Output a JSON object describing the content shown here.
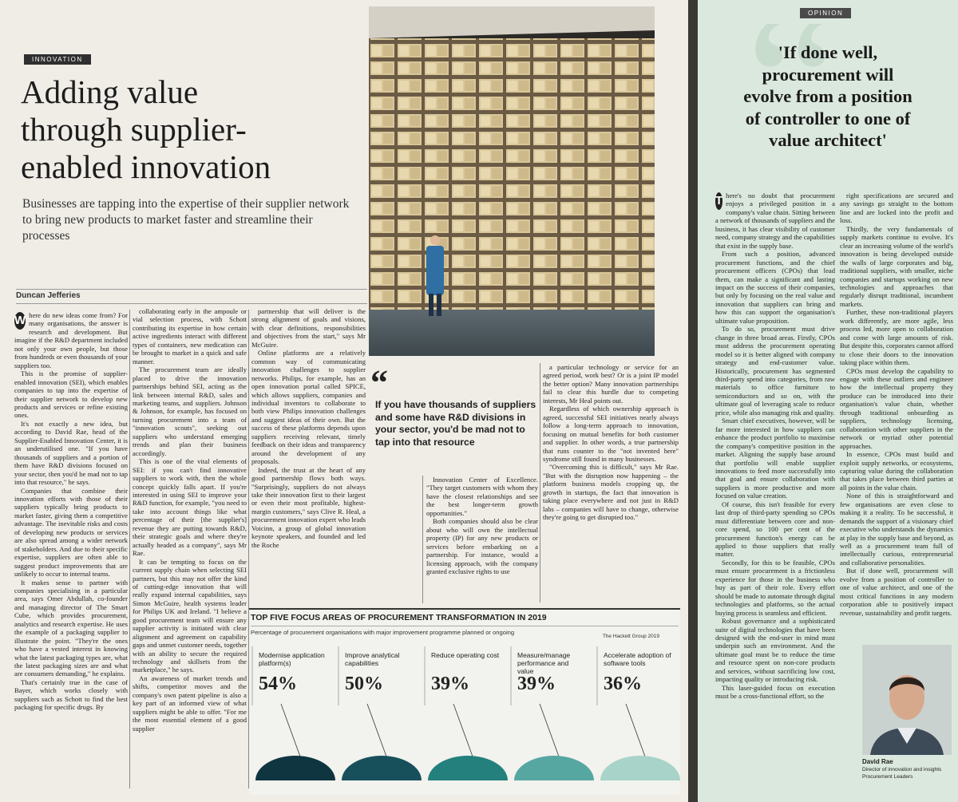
{
  "left": {
    "section": "INNOVATION",
    "headline": [
      "Adding value",
      "through supplier-",
      "enabled innovation"
    ],
    "standfirst": "Businesses are tapping into the expertise of their supplier network to bring new products to market faster and streamline their processes",
    "byline": "Duncan Jefferies",
    "columns": [
      [
        "Where do new ideas come from? For many organisations, the answer is research and development. But imagine if the R&D department included not only your own people, but those from hundreds or even thousands of your suppliers too.",
        "This is the promise of supplier-enabled innovation (SEI), which enables companies to tap into the expertise of their supplier network to develop new products and services or refine existing ones.",
        "It's not exactly a new idea, but according to David Rae, head of the Supplier-Enabled Innovation Center, it is an underutilised one. \"If you have thousands of suppliers and a portion of them have R&D divisions focused on your sector, then you'd be mad not to tap into that resource,\" he says.",
        "Companies that combine their innovation efforts with those of their suppliers typically bring products to market faster, giving them a competitive advantage. The inevitable risks and costs of developing new products or services are also spread among a wider network of stakeholders. And due to their specific expertise, suppliers are often able to suggest product improvements that are unlikely to occur to internal teams.",
        "It makes sense to partner with companies specialising in a particular area, says Omer Abdullah, co-founder and managing director of The Smart Cube, which provides procurement, analytics and research expertise. He uses the example of a packaging supplier to illustrate the point. \"They're the ones who have a vested interest in knowing what the latest packaging types are, what the latest packaging sizes are and what are consumers demanding,\" he explains.",
        "That's certainly true in the case of Bayer, which works closely with suppliers such as Schott to find the best packaging for specific drugs. By"
      ],
      [
        "collaborating early in the ampoule or vial selection process, with Schott contributing its expertise in how certain active ingredients interact with different types of containers, new medication can be brought to market in a quick and safe manner.",
        "The procurement team are ideally placed to drive the innovation partnerships behind SEI, acting as the link between internal R&D, sales and marketing teams, and suppliers. Johnson & Johnson, for example, has focused on turning procurement into a team of \"innovation scouts\", seeking out suppliers who understand emerging trends and plan their business accordingly.",
        "This is one of the vital elements of SEI: if you can't find innovative suppliers to work with, then the whole concept quickly falls apart. If you're interested in using SEI to improve your R&D function, for example, \"you need to take into account things like what percentage of their [the supplier's] revenue they are putting towards R&D, their strategic goals and where they're actually headed as a company\", says Mr Rae.",
        "It can be tempting to focus on the current supply chain when selecting SEI partners, but this may not offer the kind of cutting-edge innovation that will really expand internal capabilities, says Simon McGuire, health systems leader for Philips UK and Ireland. \"I believe a good procurement team will ensure any supplier activity is initiated with clear alignment and agreement on capability gaps and unmet customer needs, together with an ability to secure the required technology and skillsets from the marketplace,\" he says.",
        "An awareness of market trends and shifts, competitor moves and the company's own patent pipeline is also a key part of an informed view of what suppliers might be able to offer. \"For me the most essential element of a good supplier"
      ],
      [
        "partnership that will deliver is the strong alignment of goals and visions, with clear definitions, responsibilities and objectives from the start,\" says Mr McGuire.",
        "Online platforms are a relatively common way of communicating innovation challenges to supplier networks. Philips, for example, has an open innovation portal called SPICE, which allows suppliers, companies and individual inventors to collaborate to both view Philips innovation challenges and suggest ideas of their own. But the success of these platforms depends upon suppliers receiving relevant, timely feedback on their ideas and transparency around the development of any proposals.",
        "Indeed, the trust at the heart of any good partnership flows both ways. \"Surprisingly, suppliers do not always take their innovation first to their largest or even their most profitable, highest-margin customers,\" says Clive R. Heal, a procurement innovation expert who leads Voicinn, a group of global innovation keynote speakers, and founded and led the Roche"
      ],
      [
        "Innovation Center of Excellence. \"They target customers with whom they have the closest relationships and see the best longer-term growth opportunities.\"",
        "Both companies should also be clear about who will own the intellectual property (IP) for any new products or services before embarking on a partnership. For instance, would a licensing approach, with the company granted exclusive rights to use"
      ],
      [
        "a particular technology or service for an agreed period, work best? Or is a joint IP model the better option? Many innovation partnerships fail to clear this hurdle due to competing interests, Mr Heal points out.",
        "Regardless of which ownership approach is agreed, successful SEI initiatives nearly always follow a long-term approach to innovation, focusing on mutual benefits for both customer and supplier. In other words, a true partnership that runs counter to the \"not invented here\" syndrome still found in many businesses.",
        "\"Overcoming this is difficult,\" says Mr Rae. \"But with the disruption now happening – the platform business models cropping up, the growth in startups, the fact that innovation is taking place everywhere and not just in R&D labs – companies will have to change, otherwise they're going to get disrupted too.\""
      ]
    ],
    "pull_quote": "If you have thousands of suppliers and some have R&D divisions in your sector, you'd be mad not to tap into that resource",
    "infographic": {
      "title": "TOP FIVE FOCUS AREAS OF PROCUREMENT TRANSFORMATION IN 2019",
      "subtitle": "Percentage of procurement organisations with major improvement programme planned or ongoing",
      "source": "The Hackett Group 2019",
      "items": [
        {
          "label": "Modernise application platform(s)",
          "value": "54%"
        },
        {
          "label": "Improve analytical capabilities",
          "value": "50%"
        },
        {
          "label": "Reduce operating cost",
          "value": "39%"
        },
        {
          "label": "Measure/manage performance and value",
          "value": "39%"
        },
        {
          "label": "Accelerate adoption of software tools",
          "value": "36%"
        }
      ]
    }
  },
  "right": {
    "section": "OPINION",
    "headline": [
      "'If done well,",
      "procurement will",
      "evolve from a position",
      "of controller to one of",
      "value architect'"
    ],
    "columns": [
      [
        "There's no doubt that procurement enjoys a privileged position in a company's value chain. Sitting between a network of thousands of suppliers and the business, it has clear visibility of customer need, company strategy and the capabilities that exist in the supply base.",
        "From such a position, advanced procurement functions, and the chief procurement officers (CPOs) that lead them, can make a significant and lasting impact on the success of their companies, but only by focusing on the real value and innovation that suppliers can bring and how this can support the organisation's ultimate value proposition.",
        "To do so, procurement must drive change in three broad areas. Firstly, CPOs must address the procurement operating model so it is better aligned with company strategy and end-customer value. Historically, procurement has segmented third-party spend into categories, from raw materials to office furniture to semiconductors and so on, with the ultimate goal of leveraging scale to reduce price, while also managing risk and quality.",
        "Smart chief executives, however, will be far more interested in how suppliers can enhance the product portfolio to maximise the company's competitive position in the market. Aligning the supply base around that portfolio will enable supplier innovations to feed more successfully into that goal and ensure collaboration with suppliers is more productive and more focused on value creation.",
        "Of course, this isn't feasible for every last drop of third-party spending so CPOs must differentiate between core and non-core spend, so 100 per cent of the procurement function's energy can be applied to those suppliers that really matter.",
        "Secondly, for this to be feasible, CPOs must ensure procurement is a frictionless experience for those in the business who buy as part of their role. Every effort should be made to automate through digital technologies and platforms, so the actual buying process is seamless and efficient.",
        "Robust governance and a sophisticated suite of digital technologies that have been designed with the end-user in mind must underpin such an environment. And the ultimate goal must be to reduce the time and resource spent on non-core products and services, without sacrificing low cost, impacting quality or introducing risk.",
        "This laser-guided focus on execution must be a cross-functional effort, so the"
      ],
      [
        "right specifications are secured and any savings go straight to the bottom line and are locked into the profit and loss.",
        "Thirdly, the very fundamentals of supply markets continue to evolve. It's clear an increasing volume of the world's innovation is being developed outside the walls of large corporates and big, traditional suppliers, with smaller, niche companies and startups working on new technologies and approaches that regularly disrupt traditional, incumbent markets.",
        "Further, these non-traditional players work differently, are more agile, less process led, more open to collaboration and come with large amounts of risk. But despite this, corporates cannot afford to close their doors to the innovation taking place within them.",
        "CPOs must develop the capability to engage with these outliers and engineer how the intellectual property they produce can be introduced into their organisation's value chain, whether through traditional onboarding as suppliers, technology licensing, collaboration with other suppliers in the network or myriad other potential approaches.",
        "In essence, CPOs must build and exploit supply networks, or ecosystems, capturing value during the collaboration that takes place between third parties at all points in the value chain.",
        "None of this is straightforward and few organisations are even close to making it a reality. To be successful, it demands the support of a visionary chief executive who understands the dynamics at play in the supply base and beyond, as well as a procurement team full of intellectually curious, entrepreneurial and collaborative personalities.",
        "But if done well, procurement will evolve from a position of controller to one of value architect, and one of the most critical functions in any modern corporation able to positively impact revenue, sustainability and profit targets."
      ]
    ],
    "author": {
      "name": "David Rae",
      "role": "Director of innovation and insights",
      "org": "Procurement Leaders"
    }
  }
}
